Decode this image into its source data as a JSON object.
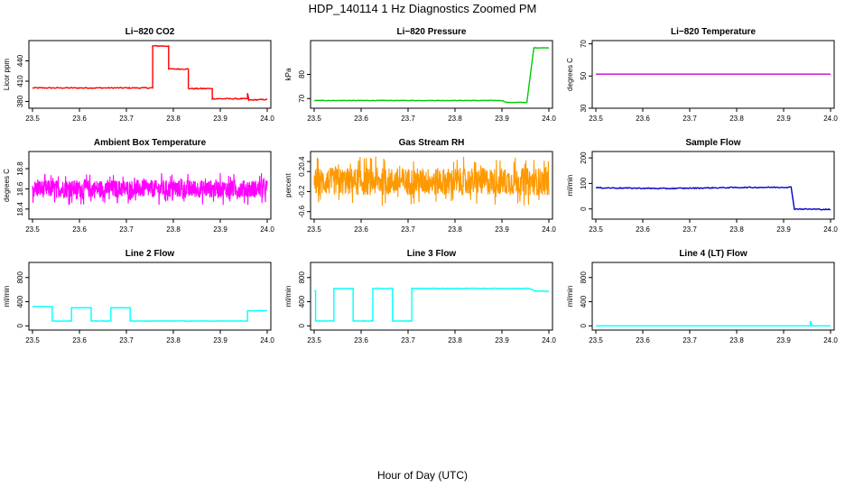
{
  "figure": {
    "title": "HDP_140114  1 Hz Diagnostics Zoomed PM",
    "xlabel": "Hour of Day (UTC)"
  },
  "chart_data": [
    {
      "type": "line",
      "title": "Li−820 CO2",
      "ylabel": "Licor ppm",
      "color": "#ff0000",
      "xlim": [
        23.5,
        24.0
      ],
      "ylim": [
        370,
        470
      ],
      "xticks": [
        23.5,
        23.6,
        23.7,
        23.8,
        23.9,
        24.0
      ],
      "yticks": [
        380,
        410,
        440
      ],
      "series": [
        {
          "kind": "step",
          "noise": 0.8,
          "points": [
            [
              23.5,
              400
            ],
            [
              23.756,
              400
            ],
            [
              23.756,
              462
            ],
            [
              23.79,
              462
            ],
            [
              23.79,
              428
            ],
            [
              23.832,
              428
            ],
            [
              23.832,
              399
            ],
            [
              23.883,
              399
            ],
            [
              23.883,
              384
            ],
            [
              23.958,
              384
            ],
            [
              23.958,
              392
            ],
            [
              23.961,
              382
            ],
            [
              24.0,
              383
            ]
          ]
        }
      ]
    },
    {
      "type": "line",
      "title": "Li−820 Pressure",
      "ylabel": "kPa",
      "color": "#00cc00",
      "xlim": [
        23.5,
        24.0
      ],
      "ylim": [
        66,
        94
      ],
      "xticks": [
        23.5,
        23.6,
        23.7,
        23.8,
        23.9,
        24.0
      ],
      "yticks": [
        70,
        80
      ],
      "series": [
        {
          "kind": "step",
          "noise": 0.1,
          "points": [
            [
              23.5,
              69.2
            ],
            [
              23.9,
              69.2
            ],
            [
              23.91,
              68.4
            ],
            [
              23.953,
              68.4
            ],
            [
              23.968,
              91
            ],
            [
              24.0,
              91
            ]
          ]
        }
      ]
    },
    {
      "type": "line",
      "title": "Li−820 Temperature",
      "ylabel": "degrees C",
      "color": "#cc00cc",
      "xlim": [
        23.5,
        24.0
      ],
      "ylim": [
        30,
        72
      ],
      "xticks": [
        23.5,
        23.6,
        23.7,
        23.8,
        23.9,
        24.0
      ],
      "yticks": [
        30,
        50,
        70
      ],
      "series": [
        {
          "kind": "step",
          "noise": 0,
          "points": [
            [
              23.5,
              51.2
            ],
            [
              24.0,
              51.2
            ]
          ]
        }
      ]
    },
    {
      "type": "line",
      "title": "Ambient Box Temperature",
      "ylabel": "degrees C",
      "color": "#ff00ff",
      "xlim": [
        23.5,
        24.0
      ],
      "ylim": [
        18.3,
        18.97
      ],
      "xticks": [
        23.5,
        23.6,
        23.7,
        23.8,
        23.9,
        24.0
      ],
      "yticks": [
        18.4,
        18.6,
        18.8
      ],
      "series": [
        {
          "kind": "noise",
          "mean": 18.6,
          "amp": 0.16,
          "points": [
            [
              23.5,
              18.6
            ],
            [
              24.0,
              18.6
            ]
          ]
        }
      ]
    },
    {
      "type": "line",
      "title": "Gas Stream RH",
      "ylabel": "percent",
      "color": "#ff9900",
      "xlim": [
        23.5,
        24.0
      ],
      "ylim": [
        -0.75,
        0.6
      ],
      "xticks": [
        23.5,
        23.6,
        23.7,
        23.8,
        23.9,
        24.0
      ],
      "yticks": [
        -0.6,
        -0.2,
        0.2,
        0.4
      ],
      "series": [
        {
          "kind": "noise",
          "mean": 0,
          "amp": 0.5,
          "points": [
            [
              23.5,
              0
            ],
            [
              24.0,
              0
            ]
          ]
        }
      ]
    },
    {
      "type": "line",
      "title": "Sample Flow",
      "ylabel": "ml/min",
      "color": "#0000cc",
      "xlim": [
        23.5,
        24.0
      ],
      "ylim": [
        -40,
        225
      ],
      "xticks": [
        23.5,
        23.6,
        23.7,
        23.8,
        23.9,
        24.0
      ],
      "yticks": [
        0,
        100,
        200
      ],
      "series": [
        {
          "kind": "step",
          "noise": 2,
          "points": [
            [
              23.5,
              83
            ],
            [
              23.65,
              80
            ],
            [
              23.8,
              84
            ],
            [
              23.916,
              85
            ],
            [
              23.923,
              0
            ],
            [
              24.0,
              -2
            ]
          ]
        }
      ]
    },
    {
      "type": "line",
      "title": "Line 2 Flow",
      "ylabel": "ml/min",
      "color": "#00ffff",
      "xlim": [
        23.5,
        24.0
      ],
      "ylim": [
        -70,
        1050
      ],
      "xticks": [
        23.5,
        23.6,
        23.7,
        23.8,
        23.9,
        24.0
      ],
      "yticks": [
        0,
        400,
        800
      ],
      "series": [
        {
          "kind": "step",
          "noise": 3,
          "points": [
            [
              23.5,
              320
            ],
            [
              23.542,
              320
            ],
            [
              23.542,
              80
            ],
            [
              23.583,
              80
            ],
            [
              23.583,
              300
            ],
            [
              23.625,
              300
            ],
            [
              23.625,
              80
            ],
            [
              23.667,
              80
            ],
            [
              23.667,
              300
            ],
            [
              23.708,
              300
            ],
            [
              23.708,
              80
            ],
            [
              23.958,
              80
            ],
            [
              23.958,
              250
            ],
            [
              24.0,
              250
            ]
          ]
        }
      ]
    },
    {
      "type": "line",
      "title": "Line 3 Flow",
      "ylabel": "ml/min",
      "color": "#00ffff",
      "xlim": [
        23.5,
        24.0
      ],
      "ylim": [
        -70,
        1050
      ],
      "xticks": [
        23.5,
        23.6,
        23.7,
        23.8,
        23.9,
        24.0
      ],
      "yticks": [
        0,
        400,
        800
      ],
      "series": [
        {
          "kind": "step",
          "noise": 4,
          "points": [
            [
              23.5,
              580
            ],
            [
              23.503,
              580
            ],
            [
              23.503,
              80
            ],
            [
              23.542,
              80
            ],
            [
              23.542,
              620
            ],
            [
              23.583,
              620
            ],
            [
              23.583,
              80
            ],
            [
              23.625,
              80
            ],
            [
              23.625,
              620
            ],
            [
              23.667,
              620
            ],
            [
              23.667,
              80
            ],
            [
              23.708,
              80
            ],
            [
              23.708,
              620
            ],
            [
              23.958,
              620
            ],
            [
              23.97,
              580
            ],
            [
              24.0,
              570
            ]
          ]
        }
      ]
    },
    {
      "type": "line",
      "title": "Line 4 (LT) Flow",
      "ylabel": "ml/min",
      "color": "#00ffff",
      "xlim": [
        23.5,
        24.0
      ],
      "ylim": [
        -70,
        1050
      ],
      "xticks": [
        23.5,
        23.6,
        23.7,
        23.8,
        23.9,
        24.0
      ],
      "yticks": [
        0,
        400,
        800
      ],
      "series": [
        {
          "kind": "step",
          "noise": 0.5,
          "points": [
            [
              23.5,
              0
            ],
            [
              23.957,
              0
            ],
            [
              23.957,
              80
            ],
            [
              23.961,
              0
            ],
            [
              24.0,
              0
            ]
          ]
        }
      ]
    }
  ]
}
